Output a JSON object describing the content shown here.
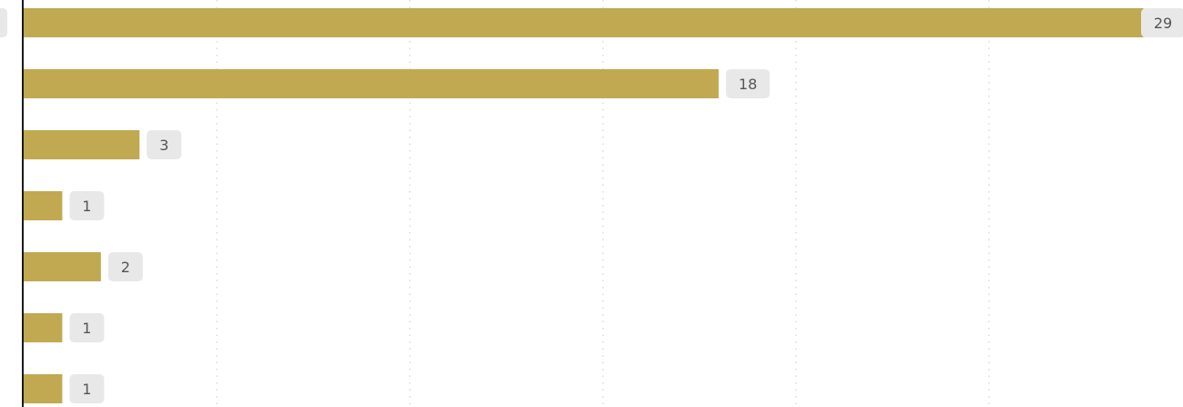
{
  "chart_data": {
    "type": "bar",
    "orientation": "horizontal",
    "values": [
      29,
      18,
      3,
      1,
      2,
      1,
      1
    ],
    "value_labels": [
      "29",
      "18",
      "3",
      "1",
      "2",
      "1",
      "1"
    ],
    "xlim": [
      0,
      30
    ],
    "grid": true,
    "gridlines": [
      5,
      10,
      15,
      20,
      25
    ],
    "colors": {
      "bar": "#c0a951",
      "label_bg": "#e8e8e8",
      "label_text": "#555555",
      "axis": "#1a1a1a",
      "grid": "#c8c8c8"
    }
  }
}
